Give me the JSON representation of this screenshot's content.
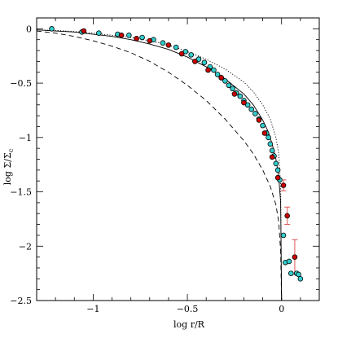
{
  "chart_data": {
    "type": "scatter",
    "xlabel": "log r/R",
    "ylabel": "log Σ/Σc",
    "ylabel_main": "log Σ/Σ",
    "ylabel_sub": "c",
    "xlim": [
      -1.3,
      0.2
    ],
    "ylim": [
      -2.5,
      0.1
    ],
    "x_ticks": [
      -1,
      -0.5,
      0
    ],
    "x_tick_labels": [
      "−1",
      "−0.5",
      "0"
    ],
    "y_ticks": [
      0,
      -0.5,
      -1,
      -1.5,
      -2,
      -2.5
    ],
    "y_tick_labels": [
      "0",
      "−0.5",
      "−1",
      "−1.5",
      "−2",
      "−2.5"
    ],
    "grid": false,
    "colors": {
      "cyan_points": "#33cccc",
      "red_points": "#cc0000",
      "error_bars": "#dd5555",
      "curves": "#000000"
    },
    "curves": [
      {
        "style": "solid",
        "x": [
          -1.3,
          -1.2,
          -1.1,
          -1.0,
          -0.9,
          -0.8,
          -0.7,
          -0.6,
          -0.5,
          -0.4,
          -0.3,
          -0.2,
          -0.15,
          -0.1,
          -0.07,
          -0.05,
          -0.03,
          -0.015,
          -0.005,
          0.0
        ],
        "y": [
          -0.01,
          -0.02,
          -0.03,
          -0.05,
          -0.07,
          -0.1,
          -0.14,
          -0.19,
          -0.26,
          -0.35,
          -0.46,
          -0.6,
          -0.7,
          -0.84,
          -0.95,
          -1.06,
          -1.2,
          -1.36,
          -1.6,
          -2.5
        ]
      },
      {
        "style": "dotted",
        "x": [
          -1.3,
          -1.2,
          -1.1,
          -1.0,
          -0.9,
          -0.8,
          -0.7,
          -0.6,
          -0.5,
          -0.4,
          -0.3,
          -0.2,
          -0.15,
          -0.1,
          -0.06,
          -0.03,
          -0.015,
          -0.005,
          0.0
        ],
        "y": [
          -0.01,
          -0.015,
          -0.025,
          -0.04,
          -0.06,
          -0.08,
          -0.11,
          -0.15,
          -0.21,
          -0.28,
          -0.37,
          -0.49,
          -0.58,
          -0.7,
          -0.83,
          -1.0,
          -1.15,
          -1.45,
          -2.5
        ]
      },
      {
        "style": "dashed",
        "x": [
          -1.3,
          -1.2,
          -1.1,
          -1.0,
          -0.9,
          -0.8,
          -0.7,
          -0.6,
          -0.5,
          -0.4,
          -0.3,
          -0.2,
          -0.15,
          -0.1,
          -0.06,
          -0.03,
          -0.015,
          -0.005,
          0.0
        ],
        "y": [
          -0.02,
          -0.04,
          -0.07,
          -0.11,
          -0.16,
          -0.22,
          -0.3,
          -0.4,
          -0.52,
          -0.66,
          -0.83,
          -1.03,
          -1.15,
          -1.3,
          -1.45,
          -1.62,
          -1.78,
          -2.05,
          -2.5
        ]
      }
    ],
    "series": [
      {
        "color": "cyan",
        "x": [
          -1.22,
          -1.06,
          -0.97,
          -0.87,
          -0.81,
          -0.74,
          -0.68,
          -0.63,
          -0.56,
          -0.51,
          -0.48,
          -0.44,
          -0.41,
          -0.38,
          -0.36,
          -0.34,
          -0.32,
          -0.3,
          -0.28,
          -0.26,
          -0.24,
          -0.22,
          -0.2,
          -0.18,
          -0.16,
          -0.14,
          -0.12,
          -0.1,
          -0.08,
          -0.07,
          -0.06,
          -0.05,
          -0.04,
          -0.03,
          -0.02,
          -0.01,
          0.01,
          0.02,
          0.04,
          0.05,
          0.08,
          0.09,
          0.1
        ],
        "y": [
          0.0,
          -0.03,
          -0.04,
          -0.05,
          -0.06,
          -0.08,
          -0.1,
          -0.13,
          -0.17,
          -0.21,
          -0.24,
          -0.28,
          -0.31,
          -0.35,
          -0.38,
          -0.42,
          -0.45,
          -0.48,
          -0.52,
          -0.55,
          -0.59,
          -0.62,
          -0.66,
          -0.7,
          -0.74,
          -0.78,
          -0.83,
          -0.89,
          -0.96,
          -1.0,
          -1.06,
          -1.12,
          -1.17,
          -1.24,
          -1.3,
          -1.39,
          -1.9,
          -2.15,
          -2.14,
          -2.25,
          -2.25,
          -2.26,
          -2.3
        ]
      },
      {
        "color": "red",
        "x": [
          -1.05,
          -0.85,
          -0.77,
          -0.7,
          -0.6,
          -0.53,
          -0.46,
          -0.39,
          -0.32,
          -0.25,
          -0.2,
          -0.12,
          -0.09,
          -0.05,
          -0.02,
          0.01,
          0.03,
          0.07
        ],
        "y": [
          -0.02,
          -0.06,
          -0.09,
          -0.11,
          -0.15,
          -0.23,
          -0.3,
          -0.38,
          -0.45,
          -0.6,
          -0.68,
          -0.84,
          -0.96,
          -1.18,
          -1.37,
          -1.44,
          -1.72,
          -2.1
        ],
        "y_err": [
          0,
          0,
          0,
          0,
          0,
          0,
          0,
          0,
          0,
          0,
          0,
          0,
          0,
          0,
          0,
          0.05,
          0.08,
          0.16
        ]
      }
    ]
  }
}
